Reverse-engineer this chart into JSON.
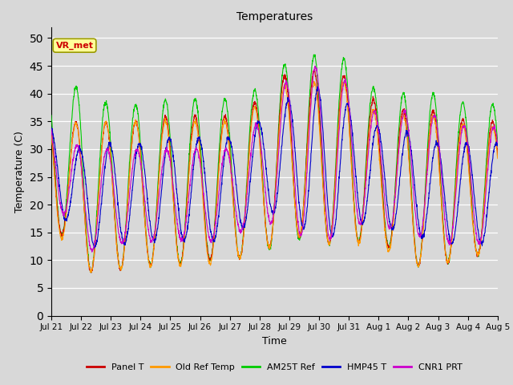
{
  "title": "Temperatures",
  "xlabel": "Time",
  "ylabel": "Temperature (C)",
  "ylim": [
    0,
    52
  ],
  "yticks": [
    0,
    5,
    10,
    15,
    20,
    25,
    30,
    35,
    40,
    45,
    50
  ],
  "bg_color": "#d8d8d8",
  "plot_bg_color": "#d8d8d8",
  "legend_labels": [
    "Panel T",
    "Old Ref Temp",
    "AM25T Ref",
    "HMP45 T",
    "CNR1 PRT"
  ],
  "legend_colors": [
    "#cc0000",
    "#ff9900",
    "#00cc00",
    "#0000cc",
    "#cc00cc"
  ],
  "annotation_text": "VR_met",
  "annotation_color": "#cc0000",
  "annotation_bg": "#ffff99",
  "annotation_border": "#999900",
  "n_days": 15,
  "day_peaks_green": [
    42,
    41,
    38,
    38,
    39,
    39,
    39,
    41,
    46,
    47,
    46,
    40,
    40,
    40,
    38
  ],
  "day_mins_green": [
    18,
    8,
    8,
    9,
    9,
    10,
    10,
    11,
    14,
    13,
    13,
    14,
    9,
    9,
    11
  ],
  "day_peaks_red": [
    39,
    34,
    35,
    35,
    36,
    36,
    36,
    39,
    44,
    44,
    43,
    38,
    37,
    37,
    35
  ],
  "day_mins_red": [
    18,
    8,
    8,
    9,
    9,
    10,
    10,
    11,
    15,
    13,
    13,
    14,
    9,
    9,
    11
  ],
  "day_peaks_orange": [
    38,
    34,
    35,
    35,
    35,
    35,
    35,
    38,
    42,
    42,
    42,
    36,
    36,
    36,
    34
  ],
  "day_mins_orange": [
    17,
    8,
    8,
    9,
    9,
    9,
    10,
    11,
    15,
    13,
    13,
    13,
    9,
    9,
    11
  ],
  "day_peaks_blue": [
    34,
    30,
    31,
    31,
    32,
    32,
    32,
    35,
    39,
    41,
    38,
    34,
    33,
    31,
    31
  ],
  "day_mins_blue": [
    22,
    12,
    13,
    13,
    14,
    13,
    14,
    18,
    19,
    12,
    17,
    16,
    15,
    13,
    13
  ],
  "day_peaks_purple": [
    35,
    30,
    30,
    30,
    30,
    30,
    30,
    35,
    43,
    45,
    42,
    36,
    37,
    36,
    34
  ],
  "day_mins_purple": [
    23,
    11,
    13,
    13,
    14,
    13,
    14,
    17,
    16,
    12,
    17,
    16,
    15,
    13,
    13
  ],
  "peak_hour": 14,
  "min_hour": 4,
  "blue_peak_hour": 17,
  "blue_min_hour": 6,
  "purple_peak_hour": 15,
  "purple_min_hour": 5
}
